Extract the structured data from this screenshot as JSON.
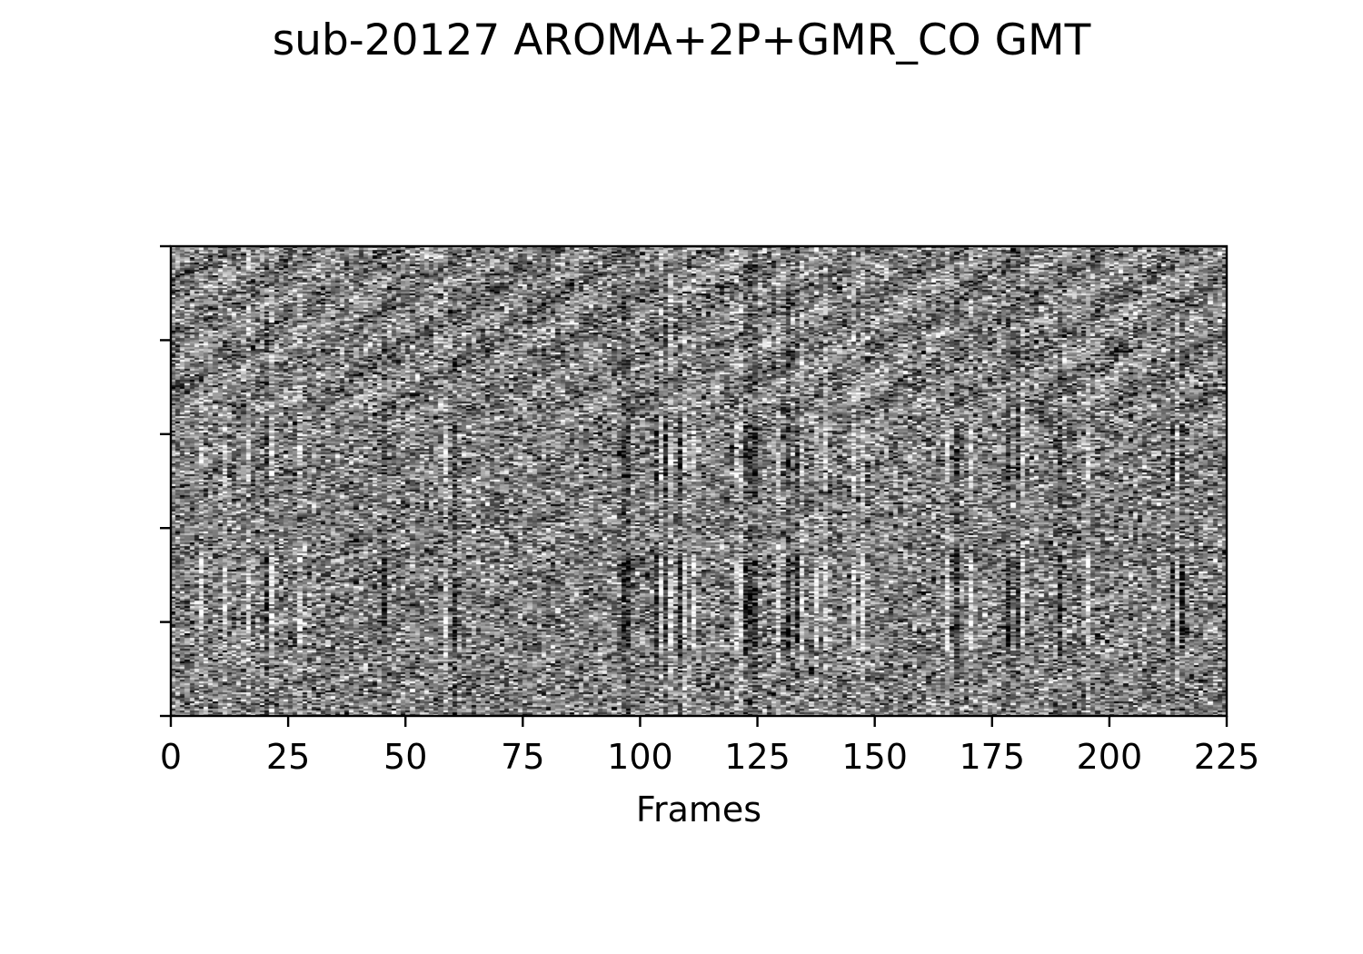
{
  "chart_data": {
    "type": "heatmap",
    "title": "sub-20127 AROMA+2P+GMR_CO GMT",
    "xlabel": "Frames",
    "ylabel": "",
    "xlim": [
      0,
      225
    ],
    "xticks": [
      0,
      25,
      50,
      75,
      100,
      125,
      150,
      175,
      200,
      225
    ],
    "xtick_labels": [
      "0",
      "25",
      "50",
      "75",
      "100",
      "125",
      "150",
      "175",
      "200",
      "225"
    ],
    "y_ticks_count": 6,
    "ytick_labels": [],
    "n_frames": 225,
    "colormap": "gray",
    "grid": false,
    "legend": "none",
    "value_range": [
      -1,
      1
    ],
    "bright_frames": [
      6,
      11,
      16,
      21,
      27,
      58,
      104,
      106,
      109,
      111,
      120,
      121,
      129,
      134,
      137,
      139,
      145,
      147,
      165,
      170,
      181,
      195,
      214
    ],
    "dark_frames": [
      20,
      45,
      60,
      96,
      97,
      103,
      105,
      108,
      122,
      123,
      124,
      131,
      133,
      167,
      178,
      180,
      189,
      213,
      215
    ]
  },
  "colors": {
    "background": "#ffffff",
    "axes": "#000000",
    "low": "#000000",
    "high": "#ffffff"
  }
}
